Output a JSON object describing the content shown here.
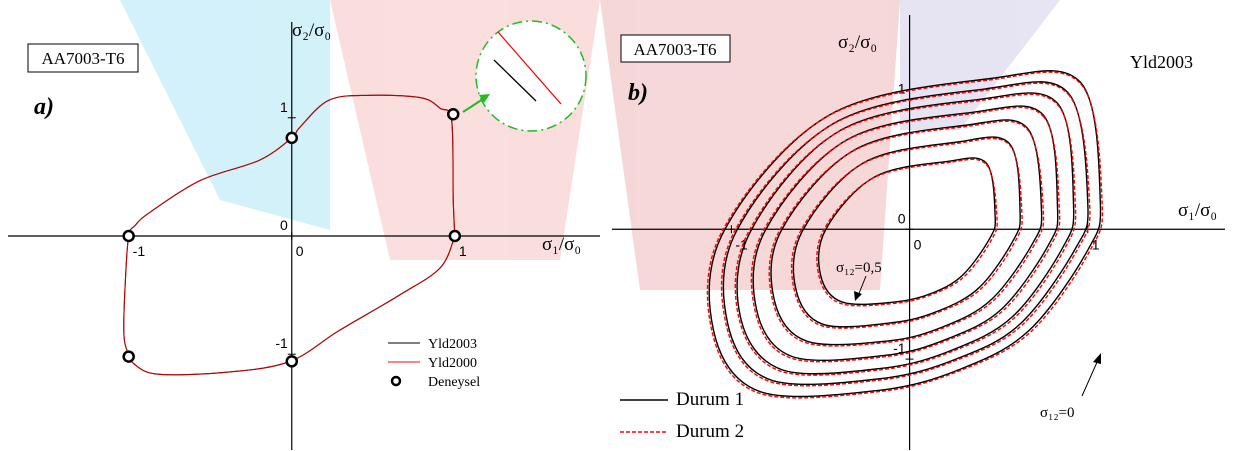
{
  "chart_data": [
    {
      "type": "line",
      "label_box": "AA7003-T6",
      "panel": "a)",
      "xlabel": "σ₁/σ₀",
      "ylabel": "σ₂/σ₀",
      "xlim": [
        -1.74,
        1.89
      ],
      "ylim": [
        -1.81,
        1.81
      ],
      "xticks": [
        -1,
        0,
        1
      ],
      "yticks": [
        -1,
        0,
        1
      ],
      "series": [
        {
          "name": "Yld2003",
          "color": "#000000",
          "x": [
            1.0,
            0.99,
            0.98,
            0.91,
            0.79,
            0.48,
            0.23,
            0.05,
            0,
            -0.2,
            -0.56,
            -0.87,
            -0.96,
            -1.0,
            -1.02,
            -1.03,
            -1.01,
            -0.96,
            -0.81,
            -0.38,
            -0.01,
            0.29,
            0.66,
            0.91,
            1.0
          ],
          "y": [
            0,
            0.31,
            0.98,
            1.08,
            1.17,
            1.19,
            1.15,
            0.92,
            0.83,
            0.64,
            0.47,
            0.2,
            0.09,
            0,
            -0.37,
            -0.8,
            -0.97,
            -1.09,
            -1.17,
            -1.15,
            -1.06,
            -0.8,
            -0.5,
            -0.27,
            0
          ]
        },
        {
          "name": "Yld2000",
          "color": "#ff0000",
          "x": [
            1.0,
            0.99,
            0.98,
            0.91,
            0.79,
            0.48,
            0.23,
            0.05,
            0,
            -0.2,
            -0.56,
            -0.87,
            -0.96,
            -1.0,
            -1.02,
            -1.03,
            -1.01,
            -0.96,
            -0.81,
            -0.38,
            -0.01,
            0.29,
            0.66,
            0.91,
            1.0
          ],
          "y": [
            0,
            0.31,
            0.98,
            1.08,
            1.17,
            1.19,
            1.15,
            0.92,
            0.83,
            0.64,
            0.47,
            0.2,
            0.09,
            0,
            -0.37,
            -0.8,
            -0.97,
            -1.09,
            -1.17,
            -1.15,
            -1.06,
            -0.8,
            -0.5,
            -0.27,
            0
          ]
        },
        {
          "name": "Deneysel",
          "color": "#000000",
          "marker": "circle",
          "x": [
            -1,
            1,
            0,
            0.99,
            -1,
            0
          ],
          "y": [
            0,
            0,
            0.83,
            1.03,
            -1.02,
            -1.06
          ]
        }
      ]
    },
    {
      "type": "contour",
      "label_box": "AA7003-T6",
      "panel": "b)",
      "model": "Yld2003",
      "xlabel": "σ₁/σ₀",
      "ylabel": "σ₂/σ₀",
      "annotations": [
        "σ₁₂=0,5",
        "σ₁₂=0"
      ],
      "xlim": [
        -1.67,
        1.77
      ],
      "ylim": [
        -1.7,
        1.65
      ],
      "xticks": [
        -1,
        0,
        1
      ],
      "yticks": [
        -1,
        0,
        1
      ],
      "series": [
        {
          "name": "Durum 1",
          "color": "#000000",
          "dash": "solid",
          "curves": [
            {
              "x": [
                0.96,
                1.07,
                1.0,
                0.67,
                0.28,
                -0.17,
                -0.84,
                -1.1,
                -1.04,
                -0.45,
                0.45
              ],
              "y": [
                1.13,
                0.22,
                -0.16,
                -0.78,
                -1.08,
                -1.24,
                -1.25,
                -0.78,
                -0.01,
                0.88,
                1.16
              ]
            },
            {
              "x": [
                0.89,
                1.0,
                0.93,
                0.62,
                0.26,
                -0.16,
                -0.78,
                -1.02,
                -0.97,
                -0.42,
                0.42
              ],
              "y": [
                1.05,
                0.2,
                -0.15,
                -0.73,
                -1.0,
                -1.15,
                -1.16,
                -0.73,
                -0.01,
                0.82,
                1.08
              ]
            },
            {
              "x": [
                0.83,
                0.92,
                0.86,
                0.58,
                0.24,
                -0.15,
                -0.72,
                -0.95,
                -0.89,
                -0.39,
                0.39
              ],
              "y": [
                0.97,
                0.19,
                -0.14,
                -0.67,
                -0.93,
                -1.07,
                -1.08,
                -0.67,
                -0.01,
                0.76,
                1.0
              ]
            },
            {
              "x": [
                0.75,
                0.83,
                0.78,
                0.52,
                0.22,
                -0.13,
                -0.66,
                -0.86,
                -0.81,
                -0.35,
                0.35
              ],
              "y": [
                0.88,
                0.17,
                -0.12,
                -0.61,
                -0.84,
                -0.97,
                -0.98,
                -0.61,
                -0.01,
                0.69,
                0.9
              ]
            },
            {
              "x": [
                0.66,
                0.74,
                0.69,
                0.46,
                0.19,
                -0.12,
                -0.58,
                -0.76,
                -0.72,
                -0.31,
                0.31
              ],
              "y": [
                0.78,
                0.15,
                -0.11,
                -0.54,
                -0.75,
                -0.86,
                -0.86,
                -0.54,
                -0.01,
                0.61,
                0.8
              ]
            },
            {
              "x": [
                0.56,
                0.62,
                0.58,
                0.39,
                0.16,
                -0.1,
                -0.49,
                -0.64,
                -0.6,
                -0.26,
                0.26
              ],
              "y": [
                0.66,
                0.13,
                -0.09,
                -0.45,
                -0.63,
                -0.72,
                -0.73,
                -0.45,
                -0.01,
                0.51,
                0.67
              ]
            },
            {
              "x": [
                0.43,
                0.48,
                0.45,
                0.3,
                0.13,
                -0.08,
                -0.38,
                -0.5,
                -0.47,
                -0.2,
                0.2
              ],
              "y": [
                0.51,
                0.1,
                -0.07,
                -0.35,
                -0.49,
                -0.56,
                -0.56,
                -0.35,
                0,
                0.4,
                0.52
              ]
            }
          ]
        },
        {
          "name": "Durum 2",
          "color": "#ff0000",
          "dash": "dashed",
          "curves": [
            {
              "x": [
                0.96,
                1.08,
                1.01,
                0.68,
                0.28,
                -0.17,
                -0.85,
                -1.11,
                -1.05,
                -0.46,
                0.45
              ],
              "y": [
                1.12,
                0.22,
                -0.17,
                -0.79,
                -1.09,
                -1.25,
                -1.26,
                -0.78,
                -0.01,
                0.87,
                1.15
              ]
            },
            {
              "x": [
                0.89,
                1.01,
                0.94,
                0.63,
                0.26,
                -0.16,
                -0.79,
                -1.03,
                -0.98,
                -0.43,
                0.42
              ],
              "y": [
                1.04,
                0.2,
                -0.16,
                -0.74,
                -1.01,
                -1.16,
                -1.17,
                -0.73,
                -0.01,
                0.81,
                1.07
              ]
            },
            {
              "x": [
                0.83,
                0.93,
                0.87,
                0.59,
                0.24,
                -0.15,
                -0.73,
                -0.96,
                -0.9,
                -0.4,
                0.39
              ],
              "y": [
                0.96,
                0.19,
                -0.15,
                -0.68,
                -0.94,
                -1.08,
                -1.09,
                -0.67,
                -0.01,
                0.75,
                0.99
              ]
            },
            {
              "x": [
                0.75,
                0.84,
                0.79,
                0.53,
                0.22,
                -0.13,
                -0.67,
                -0.87,
                -0.82,
                -0.36,
                0.35
              ],
              "y": [
                0.87,
                0.17,
                -0.13,
                -0.62,
                -0.85,
                -0.98,
                -0.99,
                -0.61,
                -0.01,
                0.68,
                0.89
              ]
            },
            {
              "x": [
                0.66,
                0.75,
                0.7,
                0.47,
                0.19,
                -0.12,
                -0.59,
                -0.77,
                -0.73,
                -0.32,
                0.31
              ],
              "y": [
                0.77,
                0.15,
                -0.12,
                -0.55,
                -0.76,
                -0.87,
                -0.87,
                -0.54,
                -0.01,
                0.6,
                0.79
              ]
            },
            {
              "x": [
                0.56,
                0.63,
                0.59,
                0.4,
                0.16,
                -0.1,
                -0.5,
                -0.65,
                -0.61,
                -0.27,
                0.26
              ],
              "y": [
                0.65,
                0.13,
                -0.1,
                -0.46,
                -0.64,
                -0.73,
                -0.74,
                -0.45,
                -0.01,
                0.5,
                0.66
              ]
            },
            {
              "x": [
                0.43,
                0.49,
                0.46,
                0.31,
                0.13,
                -0.08,
                -0.39,
                -0.51,
                -0.48,
                -0.21,
                0.2
              ],
              "y": [
                0.5,
                0.1,
                -0.08,
                -0.36,
                -0.5,
                -0.57,
                -0.57,
                -0.35,
                0,
                0.39,
                0.51
              ]
            }
          ]
        }
      ]
    }
  ]
}
